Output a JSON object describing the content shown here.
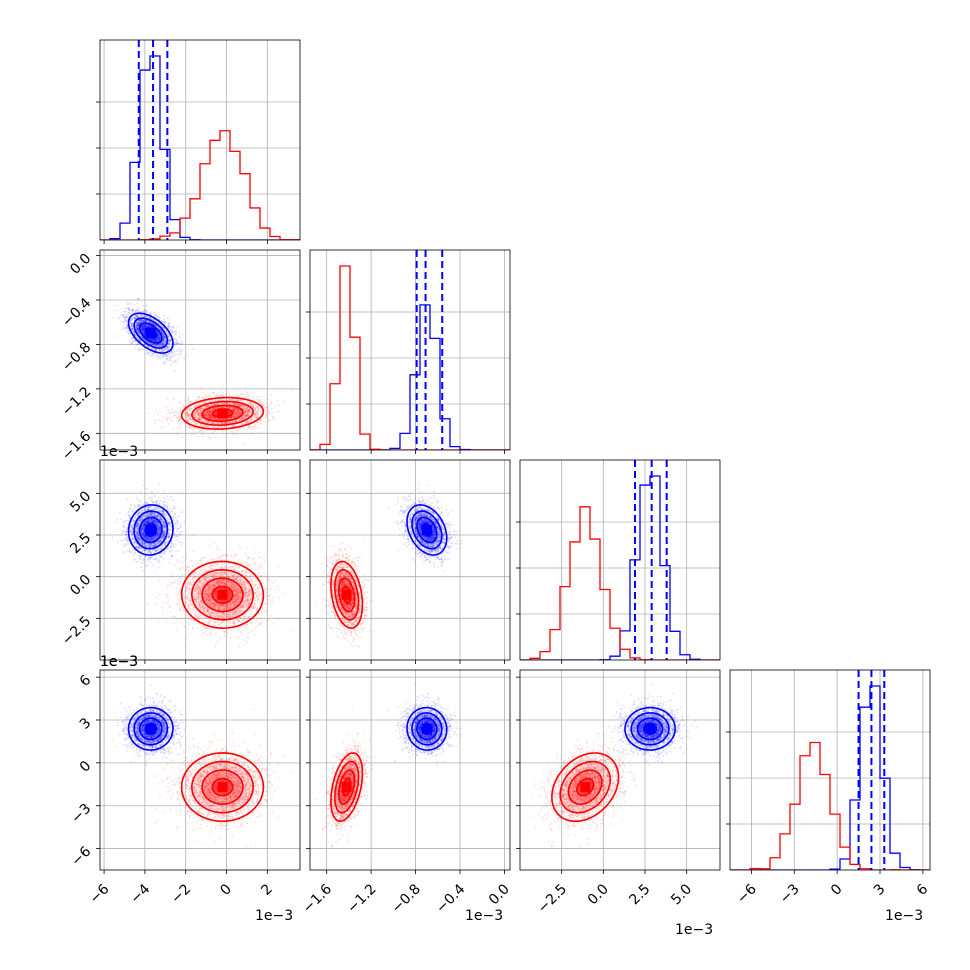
{
  "colors": {
    "blue": "#0000ff",
    "red": "#ff0000",
    "grid": "#b0b0b0"
  },
  "chart_data": {
    "type": "corner",
    "description_note": "",
    "params": [
      {
        "range": [
          -6.2,
          3.6
        ],
        "ticks": [
          -6,
          -4,
          -2,
          0,
          2
        ],
        "tick_labels": [
          "−6",
          "−4",
          "−2",
          "0",
          "2"
        ],
        "offset_text": "1e−3"
      },
      {
        "range": [
          -1.75,
          0.05
        ],
        "ticks": [
          -1.6,
          -1.2,
          -0.8,
          -0.4,
          0.0
        ],
        "tick_labels": [
          "−1.6",
          "−1.2",
          "−0.8",
          "−0.4",
          "0.0"
        ],
        "offset_text": "1e−3"
      },
      {
        "range": [
          -5.0,
          7.0
        ],
        "ticks": [
          -2.5,
          0.0,
          2.5,
          5.0
        ],
        "tick_labels": [
          "−2.5",
          "0.0",
          "2.5",
          "5.0"
        ],
        "offset_text": "1e−3"
      },
      {
        "range": [
          -7.5,
          6.5
        ],
        "ticks": [
          -6,
          -3,
          0,
          3,
          6
        ],
        "tick_labels": [
          "−6",
          "−3",
          "0",
          "3",
          "6"
        ],
        "offset_text": "1e−3"
      }
    ],
    "series": [
      {
        "color": "#0000ff",
        "mean": [
          -3.7,
          -0.7,
          2.8,
          2.4
        ],
        "std": [
          0.55,
          0.09,
          0.75,
          0.75
        ],
        "corr": [
          [
            1,
            0,
            0,
            0
          ],
          [
            -0.5,
            1,
            0,
            0
          ],
          [
            0,
            -0.3,
            1,
            0
          ],
          [
            0,
            0,
            0,
            1
          ]
        ],
        "quantiles": [
          [
            -4.3,
            -3.6,
            -2.9
          ],
          [
            -0.79,
            -0.71,
            -0.56
          ],
          [
            1.9,
            2.9,
            3.8
          ],
          [
            1.5,
            2.4,
            3.3
          ]
        ]
      },
      {
        "color": "#ff0000",
        "mean": [
          -0.2,
          -1.42,
          -1.1,
          -1.7
        ],
        "std": [
          1.0,
          0.07,
          1.0,
          1.2
        ],
        "corr": [
          [
            1,
            0,
            0,
            0
          ],
          [
            0.1,
            1,
            0,
            0
          ],
          [
            0,
            -0.3,
            1,
            0
          ],
          [
            0,
            0.4,
            0.3,
            1
          ]
        ],
        "quantiles": []
      }
    ]
  }
}
